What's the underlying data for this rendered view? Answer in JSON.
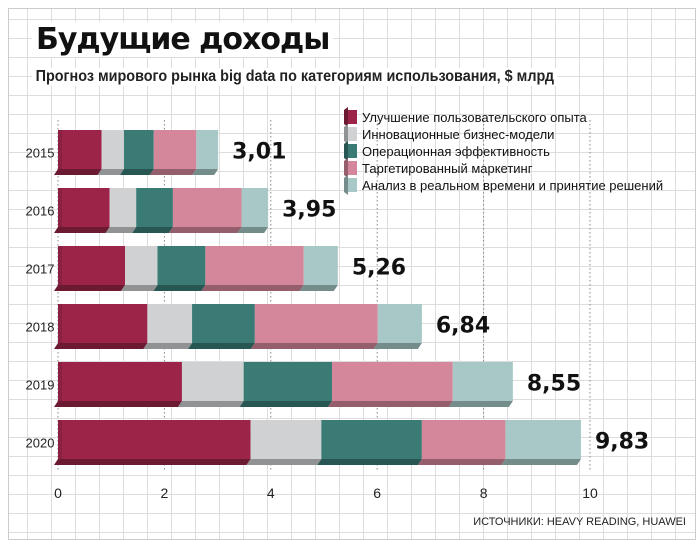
{
  "chart_data": {
    "type": "bar",
    "orientation": "horizontal",
    "stacked": true,
    "title": "Будущие доходы",
    "subtitle": "Прогноз мирового рынка big data по категориям использования, $ млрд",
    "categories": [
      "2015",
      "2016",
      "2017",
      "2018",
      "2019",
      "2020"
    ],
    "totals": [
      "3,01",
      "3,95",
      "5,26",
      "6,84",
      "8,55",
      "9,83"
    ],
    "series": [
      {
        "name": "Улучшение пользовательского опыта",
        "color": "#9b2448",
        "values": [
          0.82,
          0.97,
          1.26,
          1.68,
          2.33,
          3.62
        ]
      },
      {
        "name": "Инновационные бизнес-модели",
        "color": "#d0d1d3",
        "values": [
          0.42,
          0.5,
          0.61,
          0.84,
          1.16,
          1.33
        ]
      },
      {
        "name": "Операционная эффективность",
        "color": "#3a7b76",
        "values": [
          0.56,
          0.69,
          0.9,
          1.18,
          1.66,
          1.89
        ]
      },
      {
        "name": "Таргетированный маркетинг",
        "color": "#d4879b",
        "values": [
          0.8,
          1.29,
          1.85,
          2.31,
          2.27,
          1.57
        ]
      },
      {
        "name": "Анализ в реальном времени и принятие решений",
        "color": "#a7c8c6",
        "values": [
          0.41,
          0.5,
          0.64,
          0.83,
          1.13,
          1.42
        ]
      }
    ],
    "xticks": [
      "0",
      "2",
      "4",
      "6",
      "8",
      "10"
    ],
    "xlim": [
      0,
      10
    ],
    "grid": true,
    "legend": "top-right",
    "source": "ИСТОЧНИКИ: HEAVY READING, HUAWEI"
  }
}
